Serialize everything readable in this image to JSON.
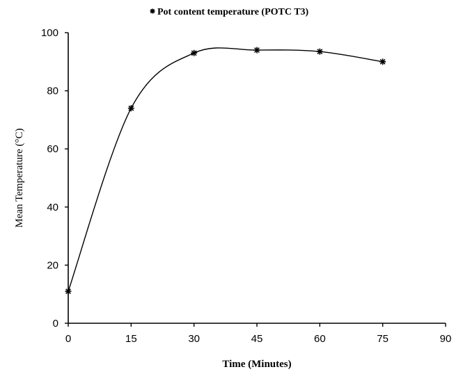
{
  "chart_data": {
    "type": "scatter",
    "title": "",
    "xlabel": "Time (Minutes)",
    "ylabel": "Mean Temperature (°C)",
    "xlim": [
      0,
      90
    ],
    "ylim": [
      0,
      100
    ],
    "x_ticks": [
      "0",
      "15",
      "30",
      "45",
      "60",
      "75",
      "90"
    ],
    "y_ticks": [
      "0",
      "20",
      "40",
      "60",
      "80",
      "100"
    ],
    "grid": false,
    "legend_position": "top-center",
    "smooth_curve": true,
    "marker": "asterisk",
    "series": [
      {
        "name": "Pot content temperature (POTC T3)",
        "x": [
          0,
          15,
          30,
          45,
          60,
          75
        ],
        "y": [
          11,
          74,
          93,
          94,
          93.5,
          90
        ]
      }
    ]
  }
}
